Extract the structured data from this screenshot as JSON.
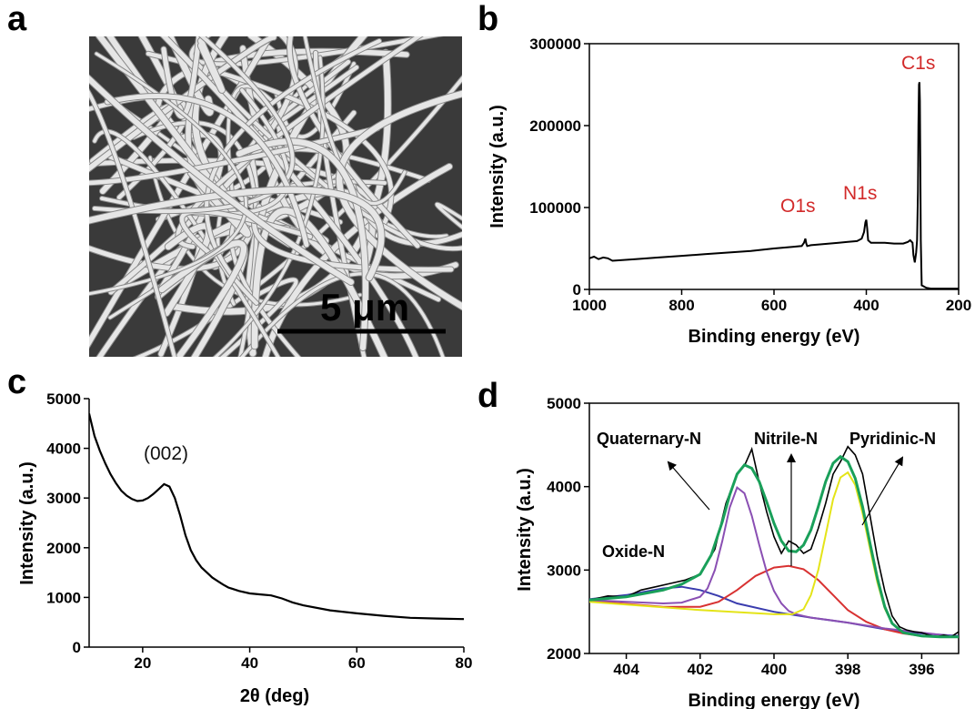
{
  "panel_labels": {
    "a": "a",
    "b": "b",
    "c": "c",
    "d": "d"
  },
  "sem_image": {
    "scale_bar_label": "5 μm"
  },
  "chart_data": [
    {
      "id": "b",
      "type": "line",
      "xlabel": "Binding energy (eV)",
      "ylabel": "Intensity (a.u.)",
      "xlim": [
        1000,
        200
      ],
      "ylim": [
        0,
        300000
      ],
      "x_ticks": [
        "1000",
        "800",
        "600",
        "400",
        "200"
      ],
      "y_ticks": [
        "0",
        "100000",
        "200000",
        "300000"
      ],
      "series": [
        {
          "color": "#000000",
          "x": [
            1000,
            990,
            980,
            970,
            960,
            950,
            900,
            850,
            800,
            750,
            700,
            650,
            600,
            560,
            540,
            535,
            532,
            530,
            528,
            520,
            500,
            480,
            460,
            440,
            420,
            410,
            405,
            402,
            400,
            398,
            396,
            390,
            380,
            360,
            340,
            320,
            310,
            305,
            300,
            298,
            295,
            292,
            290,
            288,
            287,
            286,
            285,
            284,
            283,
            282,
            280,
            270,
            260,
            240,
            220,
            200
          ],
          "y": [
            38000,
            40000,
            37000,
            39000,
            38000,
            35000,
            37000,
            39000,
            41000,
            43000,
            45000,
            47000,
            50000,
            52000,
            53000,
            57000,
            62000,
            56000,
            53000,
            54000,
            55000,
            56000,
            57000,
            58000,
            59000,
            62000,
            70000,
            82000,
            85000,
            74000,
            60000,
            57000,
            57000,
            57000,
            56000,
            56000,
            58000,
            60000,
            57000,
            42000,
            33000,
            45000,
            60000,
            120000,
            200000,
            250000,
            253000,
            230000,
            150000,
            60000,
            5000,
            2000,
            1000,
            1000,
            1000,
            1000
          ]
        }
      ],
      "annotations": [
        "O1s",
        "N1s",
        "C1s"
      ]
    },
    {
      "id": "c",
      "type": "line",
      "xlabel": "2θ (deg)",
      "ylabel": "Intensity (a.u.)",
      "xlim": [
        10,
        80
      ],
      "ylim": [
        0,
        5000
      ],
      "x_ticks": [
        "20",
        "40",
        "60",
        "80"
      ],
      "y_ticks": [
        "0",
        "1000",
        "2000",
        "3000",
        "4000",
        "5000"
      ],
      "series": [
        {
          "color": "#000000",
          "x": [
            10,
            11,
            12,
            13,
            14,
            15,
            16,
            17,
            18,
            19,
            20,
            21,
            22,
            23,
            24,
            25,
            26,
            27,
            28,
            29,
            30,
            31,
            32,
            33,
            34,
            35,
            36,
            38,
            40,
            42,
            44,
            46,
            48,
            50,
            55,
            60,
            65,
            70,
            75,
            80
          ],
          "y": [
            4700,
            4250,
            3950,
            3700,
            3480,
            3300,
            3150,
            3050,
            2980,
            2940,
            2950,
            3000,
            3080,
            3180,
            3280,
            3230,
            3000,
            2650,
            2250,
            1950,
            1750,
            1600,
            1500,
            1400,
            1330,
            1260,
            1200,
            1130,
            1080,
            1060,
            1040,
            980,
            900,
            840,
            740,
            680,
            630,
            590,
            575,
            565
          ]
        }
      ],
      "annotations": [
        "(002)"
      ]
    },
    {
      "id": "d",
      "type": "line",
      "xlabel": "Binding energy (eV)",
      "ylabel": "Intensity (a.u.)",
      "xlim": [
        405,
        395
      ],
      "ylim": [
        2000,
        5000
      ],
      "x_ticks": [
        "404",
        "402",
        "400",
        "398",
        "396"
      ],
      "y_ticks": [
        "2000",
        "3000",
        "4000",
        "5000"
      ],
      "series": [
        {
          "color": "#000000",
          "x": [
            405,
            404.5,
            404,
            403.6,
            403.2,
            402.8,
            402.4,
            402,
            401.6,
            401.3,
            401,
            400.8,
            400.6,
            400.4,
            400.2,
            400,
            399.8,
            399.6,
            399.4,
            399.2,
            399,
            398.8,
            398.6,
            398.4,
            398.2,
            398,
            397.8,
            397.6,
            397.4,
            397.2,
            397,
            396.8,
            396.6,
            396.4,
            396.2,
            396,
            395.8,
            395.6,
            395.4,
            395.2,
            395
          ],
          "y": [
            2640,
            2690,
            2680,
            2760,
            2800,
            2840,
            2880,
            2950,
            3250,
            3800,
            4150,
            4250,
            4450,
            4050,
            3700,
            3400,
            3200,
            3350,
            3300,
            3200,
            3250,
            3500,
            3800,
            4150,
            4300,
            4480,
            4380,
            4150,
            3650,
            3150,
            2750,
            2450,
            2320,
            2280,
            2260,
            2250,
            2220,
            2200,
            2220,
            2200,
            2260
          ]
        },
        {
          "color": "#1aa05a",
          "x": [
            405,
            404,
            403,
            402.5,
            402,
            401.7,
            401.4,
            401.2,
            401,
            400.8,
            400.6,
            400.4,
            400.2,
            400,
            399.8,
            399.6,
            399.4,
            399.2,
            399,
            398.8,
            398.6,
            398.4,
            398.2,
            398,
            397.8,
            397.6,
            397.4,
            397.2,
            397,
            396.8,
            396.5,
            396,
            395.5,
            395
          ],
          "y": [
            2640,
            2680,
            2760,
            2830,
            2950,
            3180,
            3580,
            3900,
            4150,
            4260,
            4220,
            4060,
            3820,
            3560,
            3350,
            3230,
            3220,
            3300,
            3480,
            3760,
            4060,
            4280,
            4360,
            4300,
            4100,
            3760,
            3320,
            2900,
            2560,
            2360,
            2250,
            2210,
            2200,
            2200
          ]
        },
        {
          "color": "#8a4fb3",
          "x": [
            405,
            404,
            403,
            402.5,
            402,
            401.8,
            401.6,
            401.4,
            401.2,
            401,
            400.8,
            400.6,
            400.4,
            400.2,
            400,
            399.8,
            399.6,
            399.4,
            399.2,
            399,
            398.5,
            398,
            397,
            396,
            395
          ],
          "y": [
            2640,
            2620,
            2600,
            2610,
            2680,
            2780,
            3000,
            3350,
            3750,
            3990,
            3920,
            3650,
            3300,
            2980,
            2750,
            2600,
            2510,
            2470,
            2450,
            2430,
            2400,
            2370,
            2300,
            2250,
            2200
          ]
        },
        {
          "color": "#d83232",
          "x": [
            405,
            403,
            402,
            401.5,
            401,
            400.5,
            400,
            399.6,
            399.2,
            398.8,
            398.4,
            398,
            397.5,
            397,
            396.5,
            396,
            395
          ],
          "y": [
            2630,
            2560,
            2560,
            2620,
            2760,
            2930,
            3030,
            3050,
            3010,
            2880,
            2700,
            2520,
            2380,
            2290,
            2240,
            2210,
            2200
          ]
        },
        {
          "color": "#e4e418",
          "x": [
            405,
            402,
            400,
            399.5,
            399.2,
            399,
            398.8,
            398.6,
            398.4,
            398.2,
            398,
            397.8,
            397.6,
            397.4,
            397.2,
            397,
            396.8,
            396.5,
            396,
            395
          ],
          "y": [
            2620,
            2520,
            2470,
            2470,
            2530,
            2700,
            3000,
            3420,
            3850,
            4110,
            4170,
            4020,
            3680,
            3250,
            2850,
            2540,
            2360,
            2250,
            2210,
            2200
          ]
        },
        {
          "color": "#3a3cae",
          "x": [
            405,
            404,
            403,
            402.5,
            402,
            401.5,
            401,
            400,
            399,
            398,
            397,
            396,
            395
          ],
          "y": [
            2650,
            2700,
            2780,
            2800,
            2760,
            2690,
            2600,
            2500,
            2430,
            2370,
            2290,
            2240,
            2210
          ]
        }
      ],
      "annotations": [
        "Quaternary-N",
        "Nitrile-N",
        "Pyridinic-N",
        "Oxide-N"
      ]
    }
  ]
}
